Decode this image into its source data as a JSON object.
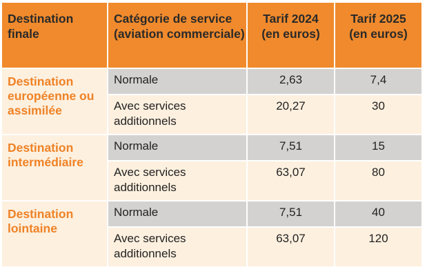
{
  "table": {
    "headers": {
      "destination": "Destination finale",
      "categorie": "Catégorie de service (aviation commerciale)",
      "tarif2024": "Tarif 2024 (en euros)",
      "tarif2025": "Tarif 2025 (en euros)"
    },
    "groups": [
      {
        "destination": "Destination européenne ou assimilée",
        "rows": [
          {
            "categorie": "Normale",
            "tarif2024": "2,63",
            "tarif2025": "7,4"
          },
          {
            "categorie": "Avec services additionnels",
            "tarif2024": "20,27",
            "tarif2025": "30"
          }
        ]
      },
      {
        "destination": "Destination intermédiaire",
        "rows": [
          {
            "categorie": "Normale",
            "tarif2024": "7,51",
            "tarif2025": "15"
          },
          {
            "categorie": "Avec services additionnels",
            "tarif2024": "63,07",
            "tarif2025": "80"
          }
        ]
      },
      {
        "destination": "Destination lointaine",
        "rows": [
          {
            "categorie": "Normale",
            "tarif2024": "7,51",
            "tarif2025": "40"
          },
          {
            "categorie": "Avec services additionnels",
            "tarif2024": "63,07",
            "tarif2025": "120"
          }
        ]
      }
    ]
  },
  "colors": {
    "header_bg": "#f08a2c",
    "destination_text": "#ef8226",
    "row_grey": "#d4d2d0",
    "row_cream": "#fdf0df"
  }
}
